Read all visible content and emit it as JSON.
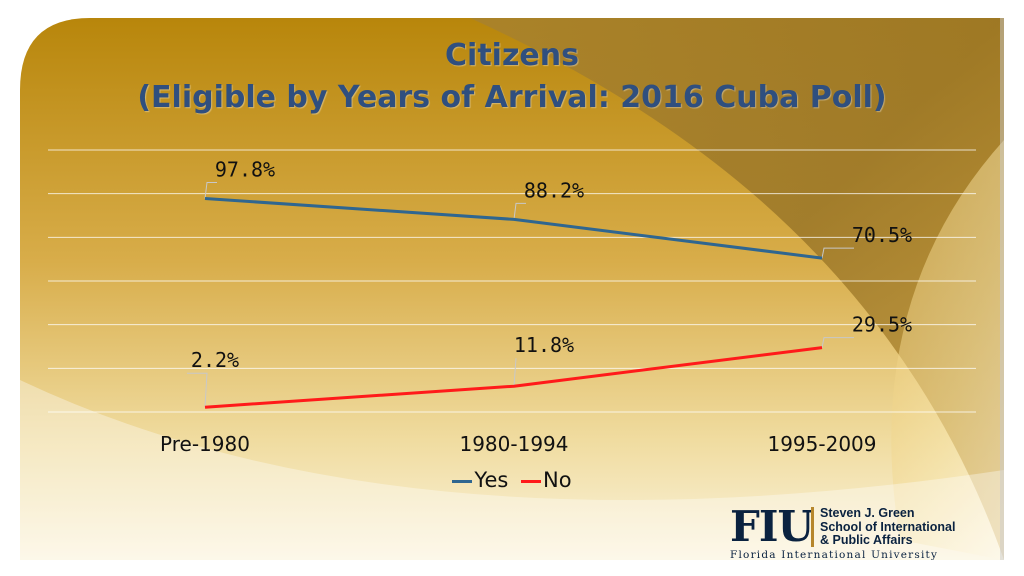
{
  "title": {
    "line1": "Citizens",
    "line2": "(Eligible by Years of Arrival: 2016 Cuba Poll)"
  },
  "colors": {
    "title": "#2f4f7f",
    "yes": "#2f6690",
    "no": "#ff1a1a",
    "gold_dark": "#b8860b",
    "gold_light": "#f1d98a"
  },
  "chart_data": {
    "type": "line",
    "categories": [
      "Pre-1980",
      "1980-1994",
      "1995-2009"
    ],
    "series": [
      {
        "name": "Yes",
        "values": [
          97.8,
          88.2,
          70.5
        ],
        "labels": [
          "97.8%",
          "88.2%",
          "70.5%"
        ],
        "color": "#2f6690"
      },
      {
        "name": "No",
        "values": [
          2.2,
          11.8,
          29.5
        ],
        "labels": [
          "2.2%",
          "11.8%",
          "29.5%"
        ],
        "color": "#ff1a1a"
      }
    ],
    "title": "Citizens (Eligible by Years of Arrival: 2016 Cuba Poll)",
    "xlabel": "",
    "ylabel": "",
    "ylim": [
      0,
      120
    ],
    "grid": true,
    "legend": "bottom"
  },
  "legend": {
    "yes_label": "Yes",
    "no_label": "No"
  },
  "logo": {
    "mark": "FIU",
    "school_line1": "Steven J. Green",
    "school_line2": "School of International",
    "school_line3": "& Public Affairs",
    "university": "Florida International University"
  }
}
